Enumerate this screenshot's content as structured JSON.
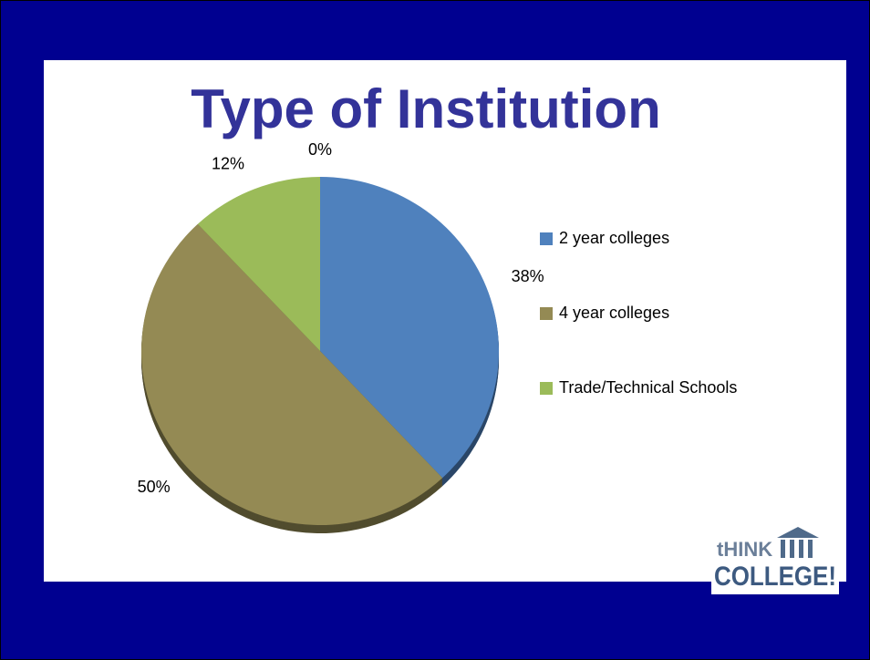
{
  "chart_data": {
    "type": "pie",
    "title": "Type of Institution",
    "categories": [
      "2 year colleges",
      "4 year colleges",
      "Trade/Technical Schools",
      null
    ],
    "values": [
      38,
      50,
      12,
      0
    ],
    "value_labels": [
      "38%",
      "50%",
      "12%",
      "0%"
    ],
    "colors": [
      "#4f81bd",
      "#948a54",
      "#9bbb59",
      "#8064a2"
    ],
    "legend": "right"
  },
  "logo": {
    "line1": "tHINK",
    "line2": "COLLEGE!"
  }
}
